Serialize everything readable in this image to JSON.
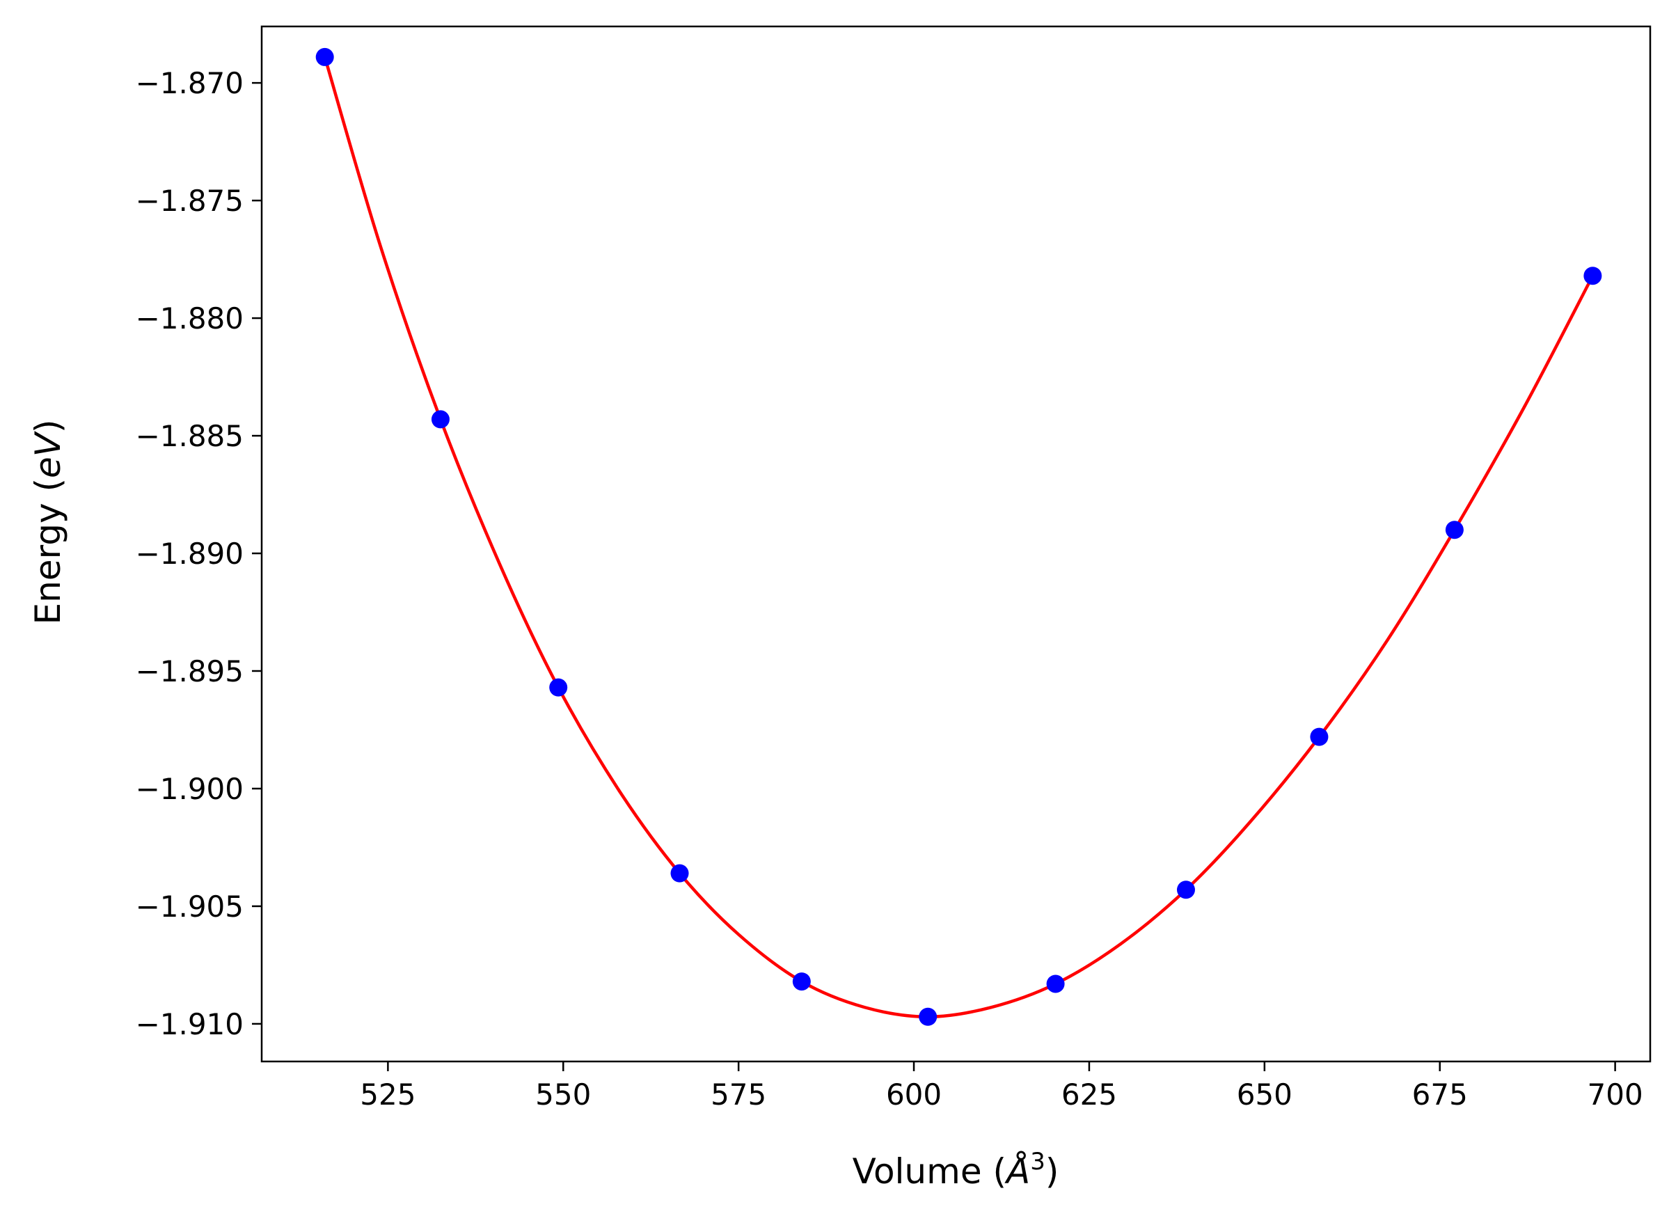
{
  "chart_data": {
    "type": "scatter",
    "title": "",
    "xlabel": "Volume",
    "xlabel_unit": "Å",
    "xlabel_unit_power": "3",
    "ylabel": "Energy",
    "ylabel_unit": "eV",
    "xlim": [
      507.0,
      705.0
    ],
    "ylim": [
      -1.9116,
      -1.8676
    ],
    "x_ticks": [
      525,
      550,
      575,
      600,
      625,
      650,
      675,
      700
    ],
    "y_ticks": [
      -1.87,
      -1.875,
      -1.88,
      -1.885,
      -1.89,
      -1.895,
      -1.9,
      -1.905,
      -1.91
    ],
    "y_tick_labels": [
      "−1.870",
      "−1.875",
      "−1.880",
      "−1.885",
      "−1.890",
      "−1.895",
      "−1.900",
      "−1.905",
      "−1.910"
    ],
    "grid": false,
    "legend": "none",
    "series": [
      {
        "kind": "points",
        "color": "#0000ff",
        "x": [
          516.0,
          532.5,
          549.3,
          566.6,
          584.0,
          602.0,
          620.2,
          638.8,
          657.8,
          677.1,
          696.8
        ],
        "y": [
          -1.8689,
          -1.8843,
          -1.8957,
          -1.9036,
          -1.9082,
          -1.9097,
          -1.9083,
          -1.9043,
          -1.8978,
          -1.889,
          -1.8782
        ]
      },
      {
        "kind": "fit-line",
        "color": "#ff0000",
        "x": [
          516.0,
          524.0,
          532.5,
          541.0,
          549.3,
          558.0,
          566.6,
          575.0,
          584.0,
          593.0,
          602.0,
          611.0,
          620.2,
          629.5,
          638.8,
          648.0,
          657.8,
          667.5,
          677.1,
          687.0,
          696.8
        ],
        "y": [
          -1.8689,
          -1.877,
          -1.8843,
          -1.8905,
          -1.8957,
          -1.9001,
          -1.9036,
          -1.9062,
          -1.9082,
          -1.9093,
          -1.9097,
          -1.9093,
          -1.9083,
          -1.9066,
          -1.9043,
          -1.9014,
          -1.8978,
          -1.8937,
          -1.889,
          -1.8838,
          -1.8782
        ]
      }
    ]
  }
}
